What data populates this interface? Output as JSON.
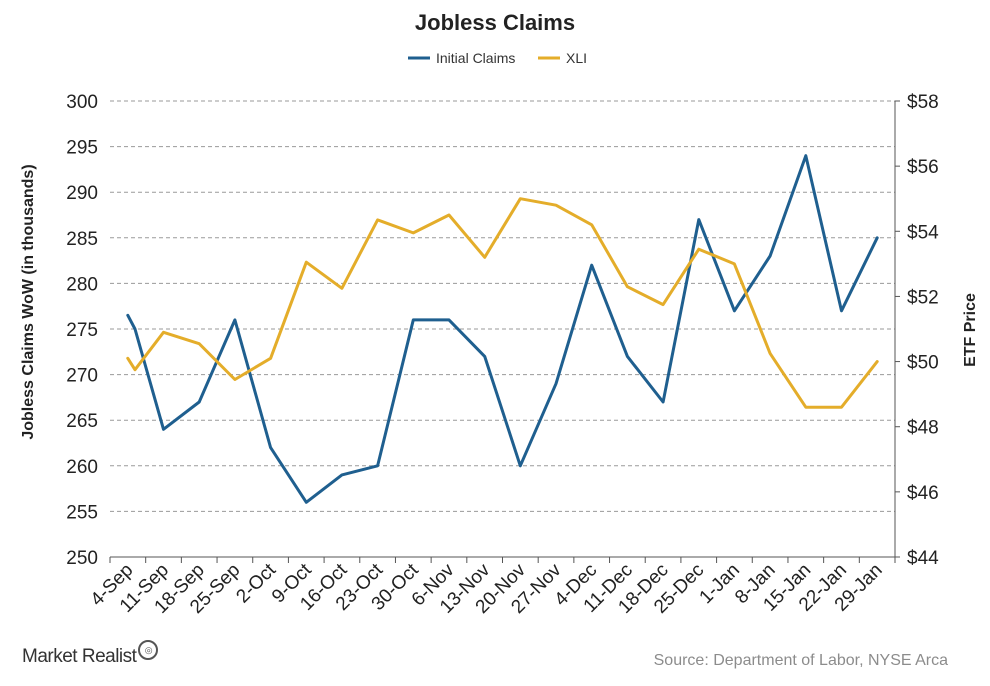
{
  "chart_data": {
    "type": "line",
    "title": "Jobless Claims",
    "categories": [
      "4-Sep",
      "11-Sep",
      "18-Sep",
      "25-Sep",
      "2-Oct",
      "9-Oct",
      "16-Oct",
      "23-Oct",
      "30-Oct",
      "6-Nov",
      "13-Nov",
      "20-Nov",
      "27-Nov",
      "4-Dec",
      "11-Dec",
      "18-Dec",
      "25-Dec",
      "1-Jan",
      "8-Jan",
      "15-Jan",
      "22-Jan",
      "29-Jan"
    ],
    "ylabel": "Jobless Claims WoW (in thousands)",
    "ylabel_right": "ETF Price",
    "ylim": [
      250,
      300
    ],
    "ylim_right": [
      44,
      58
    ],
    "yticks": [
      "300",
      "295",
      "290",
      "285",
      "280",
      "275",
      "270",
      "265",
      "260",
      "255",
      "250"
    ],
    "yticks_right": [
      "$58",
      "$56",
      "$54",
      "$52",
      "$50",
      "$48",
      "$46",
      "$44"
    ],
    "grid": true,
    "legend": "top-center",
    "series": [
      {
        "name": "Initial Claims",
        "axis": "left",
        "color": "#1f5f8f",
        "points": [
          [
            0,
            276.5
          ],
          [
            0.2,
            275
          ],
          [
            1,
            264
          ],
          [
            2,
            267
          ],
          [
            3,
            276
          ],
          [
            4,
            262
          ],
          [
            5,
            256
          ],
          [
            6,
            259
          ],
          [
            7,
            260
          ],
          [
            8,
            276
          ],
          [
            9,
            276
          ],
          [
            10,
            272
          ],
          [
            11,
            260
          ],
          [
            12,
            269
          ],
          [
            13,
            282
          ],
          [
            14,
            272
          ],
          [
            15,
            267
          ],
          [
            16,
            287
          ],
          [
            17,
            277
          ],
          [
            18,
            283
          ],
          [
            19,
            294
          ],
          [
            20,
            277
          ],
          [
            21,
            285
          ]
        ]
      },
      {
        "name": "XLI",
        "axis": "right",
        "color": "#e4ad2a",
        "points": [
          [
            0,
            50.1
          ],
          [
            0.2,
            49.75
          ],
          [
            1,
            50.9
          ],
          [
            2,
            50.55
          ],
          [
            3,
            49.45
          ],
          [
            4,
            50.1
          ],
          [
            5,
            53.05
          ],
          [
            6,
            52.25
          ],
          [
            7,
            54.35
          ],
          [
            8,
            53.95
          ],
          [
            9,
            54.5
          ],
          [
            10,
            53.2
          ],
          [
            11,
            55
          ],
          [
            12,
            54.8
          ],
          [
            13,
            54.2
          ],
          [
            14,
            52.3
          ],
          [
            15,
            51.75
          ],
          [
            16,
            53.45
          ],
          [
            17,
            53
          ],
          [
            18,
            50.25
          ],
          [
            19,
            48.6
          ],
          [
            20,
            48.6
          ],
          [
            21,
            50
          ]
        ]
      }
    ]
  },
  "footer": {
    "brand": "Market Realist",
    "source": "Source:  Department of Labor, NYSE Arca"
  }
}
